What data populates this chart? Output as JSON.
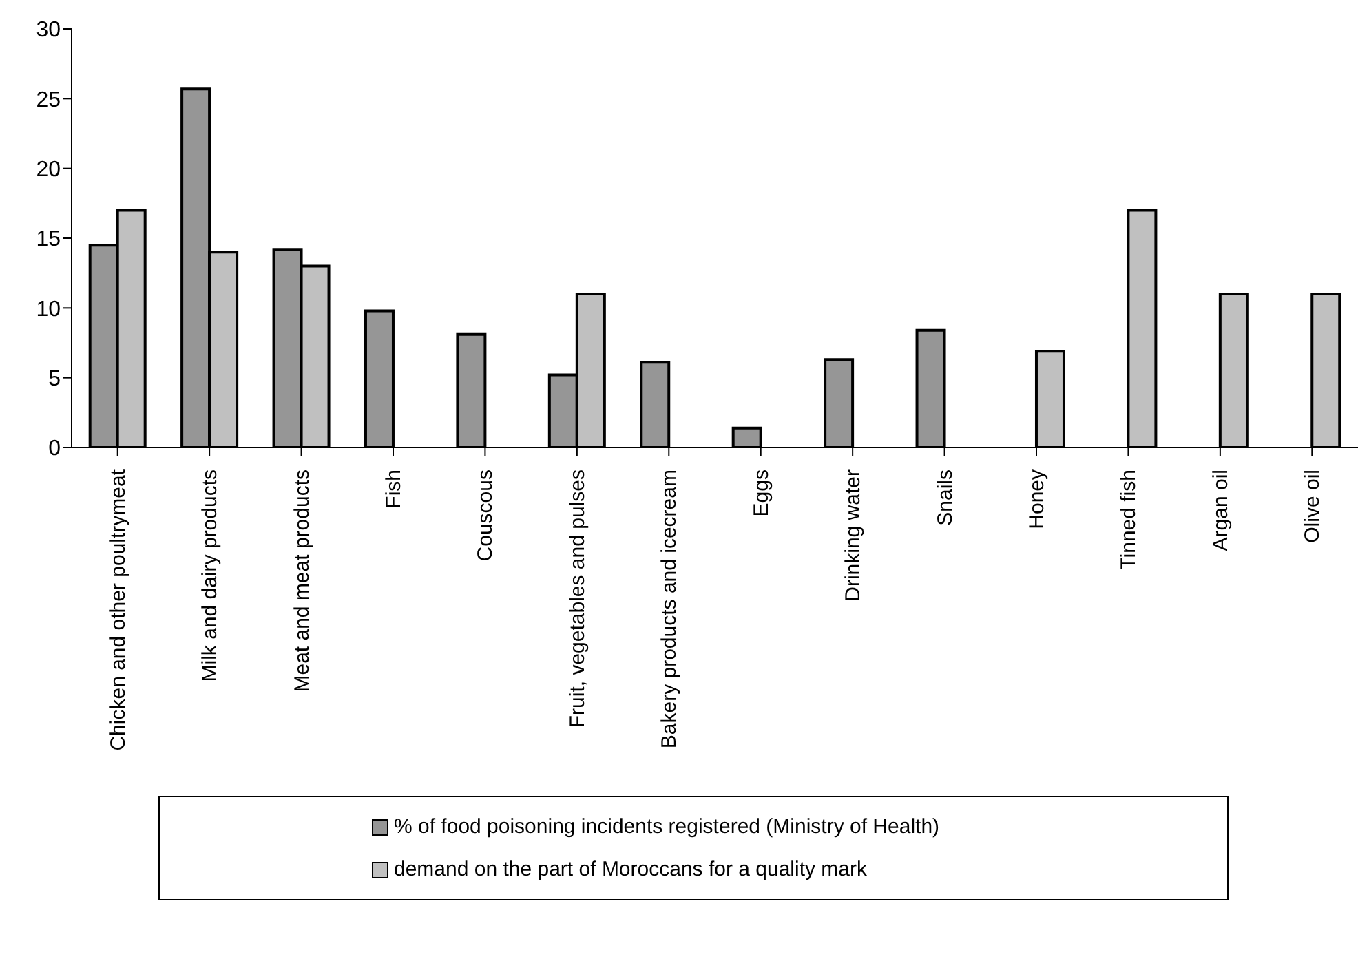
{
  "chart_data": {
    "type": "bar",
    "categories": [
      "Chicken and other poultrymeat",
      "Milk and dairy products",
      "Meat and meat products",
      "Fish",
      "Couscous",
      "Fruit, vegetables and pulses",
      "Bakery products and icecream",
      "Eggs",
      "Drinking water",
      "Snails",
      "Honey",
      "Tinned fish",
      "Argan oil",
      "Olive oil"
    ],
    "series": [
      {
        "name": "% of food poisoning incidents registered (Ministry of Health)",
        "color": "#969696",
        "values": [
          14.5,
          25.7,
          14.2,
          9.8,
          8.1,
          5.2,
          6.1,
          1.4,
          6.3,
          8.4,
          null,
          null,
          null,
          null
        ]
      },
      {
        "name": "demand on the part of Moroccans for a quality mark",
        "color": "#c0c0c0",
        "values": [
          17,
          14,
          13,
          null,
          null,
          11,
          null,
          null,
          null,
          null,
          6.9,
          17,
          11,
          11
        ]
      }
    ],
    "ylim": [
      0,
      30
    ],
    "yticks": [
      0,
      5,
      10,
      15,
      20,
      25,
      30
    ],
    "grid": false,
    "legend": "bottom"
  }
}
